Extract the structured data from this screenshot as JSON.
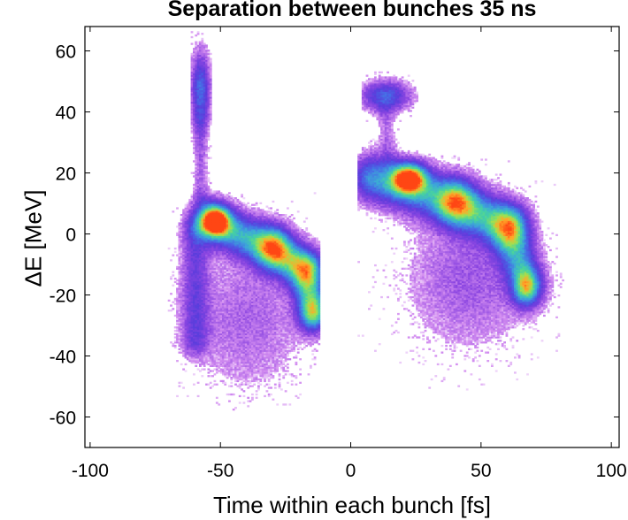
{
  "chart_data": {
    "type": "heatmap",
    "title": "Separation between bunches 35 ns",
    "xlabel": "Time within each bunch [fs]",
    "ylabel": "ΔE [MeV]",
    "xlim": [
      -102,
      103
    ],
    "ylim": [
      -70,
      68
    ],
    "xticks": [
      -100,
      -50,
      0,
      50,
      100
    ],
    "xtick_labels": [
      "-100",
      "-50",
      "0",
      "50",
      "100"
    ],
    "yticks": [
      -60,
      -40,
      -20,
      0,
      20,
      40,
      60
    ],
    "ytick_labels": [
      "-60",
      "-40",
      "-20",
      "0",
      "20",
      "40",
      "60"
    ],
    "grid": false,
    "colormap": [
      "#ffffff",
      "#c86ee6",
      "#7a3ee0",
      "#4a5fe0",
      "#3fa8d8",
      "#4ad19a",
      "#b8e04a",
      "#ffa020",
      "#ff4a10"
    ],
    "density_clusters": [
      {
        "name": "bunch-1-main",
        "center": [
          -52,
          4
        ],
        "peak": 1.0
      },
      {
        "name": "bunch-1-tail",
        "center": [
          -15,
          -25
        ],
        "peak": 0.6
      },
      {
        "name": "bunch-1-top",
        "center": [
          -58,
          45
        ],
        "peak": 0.5
      },
      {
        "name": "bunch-2-main",
        "center": [
          22,
          18
        ],
        "peak": 1.0
      },
      {
        "name": "bunch-2-tail",
        "center": [
          67,
          -17
        ],
        "peak": 0.55
      },
      {
        "name": "bunch-2-top",
        "center": [
          13,
          45
        ],
        "peak": 0.45
      }
    ]
  }
}
